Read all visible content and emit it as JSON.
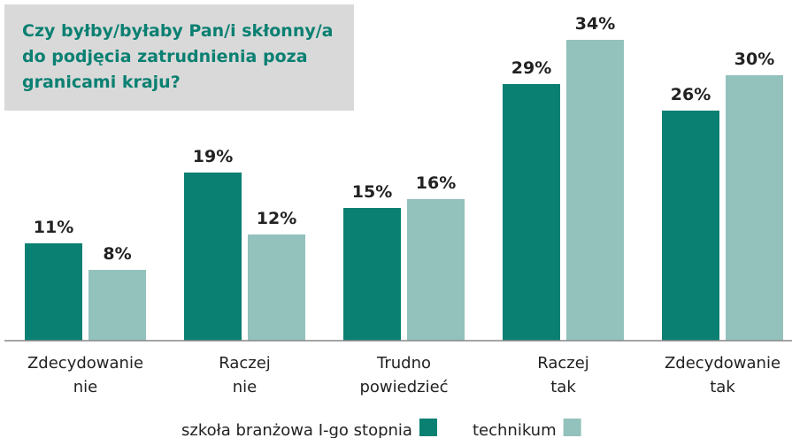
{
  "chart_data": {
    "type": "bar",
    "title": "Czy byłby/byłaby Pan/i skłonny/a do podjęcia zatrudnienia poza granicami kraju?",
    "categories": [
      "Zdecydowanie nie",
      "Raczej nie",
      "Trudno powiedzieć",
      "Raczej tak",
      "Zdecydowanie tak"
    ],
    "series": [
      {
        "name": "szkoła branżowa I-go stopnia",
        "color": "#0a8072",
        "values": [
          11,
          19,
          15,
          29,
          26
        ],
        "value_labels": [
          "11%",
          "19%",
          "15%",
          "29%",
          "26%"
        ]
      },
      {
        "name": "technikum",
        "color": "#93c1bc",
        "values": [
          8,
          12,
          16,
          34,
          30
        ],
        "value_labels": [
          "8%",
          "12%",
          "16%",
          "34%",
          "30%"
        ]
      }
    ]
  }
}
